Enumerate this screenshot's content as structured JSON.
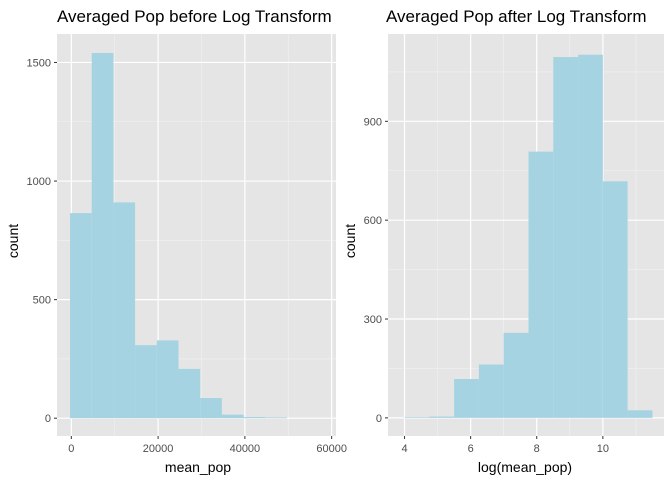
{
  "chart_data": [
    {
      "type": "bar",
      "title": "Averaged Pop before Log Transform",
      "xlabel": "mean_pop",
      "ylabel": "count",
      "xlim": [
        -3300,
        61000
      ],
      "ylim": [
        -75,
        1620
      ],
      "x_ticks": [
        0,
        20000,
        40000,
        60000
      ],
      "x_tick_labels": [
        "0",
        "20000",
        "40000",
        "60000"
      ],
      "x_minor_ticks": [
        10000,
        30000,
        50000
      ],
      "y_ticks": [
        0,
        500,
        1000,
        1500
      ],
      "y_tick_labels": [
        "0",
        "500",
        "1000",
        "1500"
      ],
      "y_minor_ticks": [
        250,
        750,
        1250
      ],
      "bin_edges": [
        -300,
        4700,
        9700,
        14700,
        19700,
        24700,
        29700,
        34700,
        39700,
        44700,
        49700,
        54700,
        59700
      ],
      "values": [
        865,
        1540,
        910,
        308,
        328,
        208,
        85,
        15,
        5,
        3,
        0,
        0
      ],
      "fill_color": "#a6d3e2",
      "panel_background": "#e5e5e5",
      "grid": true
    },
    {
      "type": "bar",
      "title": "Averaged Pop after Log Transform",
      "xlabel": "log(mean_pop)",
      "ylabel": "count",
      "xlim": [
        3.5,
        11.85
      ],
      "ylim": [
        -55,
        1165
      ],
      "x_ticks": [
        4,
        6,
        8,
        10
      ],
      "x_tick_labels": [
        "4",
        "6",
        "8",
        "10"
      ],
      "x_minor_ticks": [
        5,
        7,
        9,
        11
      ],
      "y_ticks": [
        0,
        300,
        600,
        900
      ],
      "y_tick_labels": [
        "0",
        "300",
        "600",
        "900"
      ],
      "y_minor_ticks": [
        150,
        450,
        750,
        1050
      ],
      "bin_edges": [
        4.0,
        4.75,
        5.5,
        6.25,
        7.0,
        7.75,
        8.5,
        9.25,
        10.0,
        10.75,
        11.5
      ],
      "values": [
        2,
        4,
        118,
        162,
        258,
        808,
        1095,
        1102,
        718,
        23
      ],
      "fill_color": "#a6d3e2",
      "panel_background": "#e5e5e5",
      "grid": true
    }
  ]
}
